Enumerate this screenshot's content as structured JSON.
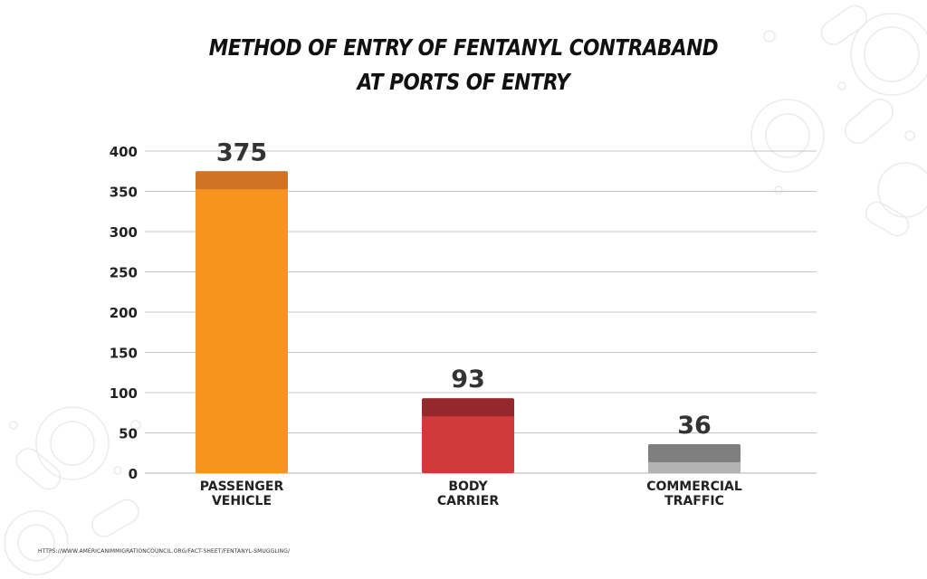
{
  "chart_data": {
    "type": "bar",
    "title_lines": [
      "METHOD OF ENTRY OF FENTANYL CONTRABAND",
      "AT PORTS OF ENTRY"
    ],
    "categories": [
      {
        "lines": [
          "PASSENGER",
          "VEHICLE"
        ],
        "value": 375,
        "value_label": "375",
        "color": "#f7941d",
        "cap_color": "#cf7424"
      },
      {
        "lines": [
          "BODY",
          "CARRIER"
        ],
        "value": 93,
        "value_label": "93",
        "color": "#d03a3a",
        "cap_color": "#95282d"
      },
      {
        "lines": [
          "COMMERCIAL",
          "TRAFFIC"
        ],
        "value": 36,
        "value_label": "36",
        "color": "#b3b3b3",
        "cap_color": "#7f7f7f"
      }
    ],
    "y_ticks": [
      "0",
      "50",
      "100",
      "150",
      "200",
      "250",
      "300",
      "350",
      "400"
    ],
    "ylim": [
      0,
      400
    ],
    "grid": true,
    "source": "HTTPS://WWW.AMERICANIMMIGRATIONCOUNCIL.ORG/FACT-SHEET/FENTANYL-SMUGGLING/"
  }
}
